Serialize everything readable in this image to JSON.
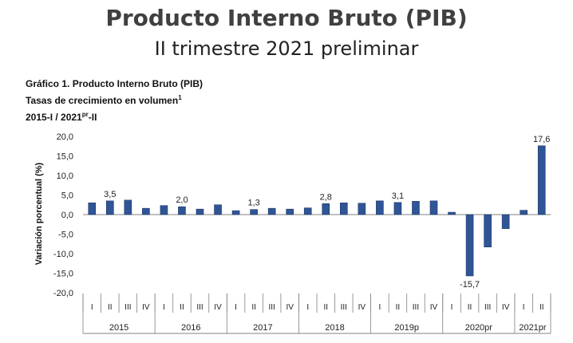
{
  "page": {
    "title": "Producto Interno Bruto (PIB)",
    "subtitle": "II trimestre 2021 preliminar"
  },
  "chart_heading": {
    "line1": "Gráfico 1. Producto Interno Bruto (PIB)",
    "line2_text": "Tasas de crecimiento en volumen",
    "line2_sup": "1",
    "line3_a": "2015-I / 2021",
    "line3_sup": "pr",
    "line3_b": "-II"
  },
  "colors": {
    "bar": "#2f5597",
    "bar_edge": "#1f3864",
    "axis": "#808080"
  },
  "chart_data": {
    "type": "bar",
    "ylabel": "Variación porcentual (%)",
    "ylim": [
      -20,
      20
    ],
    "yticks": [
      "20,0",
      "15,0",
      "10,0",
      "5,0",
      "0,0",
      "-5,0",
      "-10,0",
      "-15,0",
      "-20,0"
    ],
    "ytick_values": [
      20,
      15,
      10,
      5,
      0,
      -5,
      -10,
      -15,
      -20
    ],
    "categories": [
      "I",
      "II",
      "III",
      "IV",
      "I",
      "II",
      "III",
      "IV",
      "I",
      "II",
      "III",
      "IV",
      "I",
      "II",
      "III",
      "IV",
      "I",
      "II",
      "III",
      "IV",
      "I",
      "II",
      "III",
      "IV",
      "I",
      "II"
    ],
    "values": [
      3.0,
      3.5,
      3.7,
      1.6,
      2.3,
      2.0,
      1.4,
      2.5,
      1.0,
      1.3,
      1.6,
      1.4,
      1.7,
      2.8,
      3.0,
      2.9,
      3.5,
      3.1,
      3.4,
      3.5,
      0.6,
      -15.7,
      -8.3,
      -3.6,
      1.1,
      17.6
    ],
    "groups": [
      {
        "label": "2015",
        "count": 4
      },
      {
        "label": "2016",
        "count": 4
      },
      {
        "label": "2017",
        "count": 4
      },
      {
        "label": "2018",
        "count": 4
      },
      {
        "label": "2019p",
        "count": 4
      },
      {
        "label": "2020pr",
        "count": 4
      },
      {
        "label": "2021pr",
        "count": 2
      }
    ],
    "data_labels": [
      {
        "index": 1,
        "text": "3,5"
      },
      {
        "index": 5,
        "text": "2,0"
      },
      {
        "index": 9,
        "text": "1,3"
      },
      {
        "index": 13,
        "text": "2,8"
      },
      {
        "index": 17,
        "text": "3,1"
      },
      {
        "index": 21,
        "text": "-15,7"
      },
      {
        "index": 25,
        "text": "17,6"
      }
    ]
  }
}
